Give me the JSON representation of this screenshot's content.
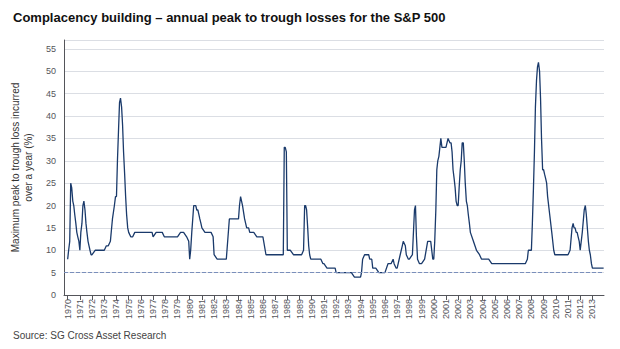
{
  "chart_data": {
    "type": "line",
    "title": "Complacency building – annual peak to trough losses for the S&P 500",
    "source": "Source: SG Cross Asset Research",
    "ylabel": "Maximum peak to trough loss incurred\nover a year (%)",
    "color": "#1a3a6b",
    "grid": "y",
    "xlim": [
      1969.7,
      2013.95
    ],
    "xticks": [
      1970,
      1971,
      1972,
      1973,
      1974,
      1975,
      1976,
      1977,
      1978,
      1979,
      1980,
      1981,
      1982,
      1983,
      1984,
      1985,
      1986,
      1987,
      1988,
      1989,
      1990,
      1991,
      1992,
      1993,
      1994,
      1995,
      1996,
      1997,
      1998,
      1999,
      2000,
      2001,
      2002,
      2003,
      2004,
      2005,
      2006,
      2007,
      2008,
      2009,
      2010,
      2011,
      2012,
      2013
    ],
    "ylim": [
      0,
      57
    ],
    "yticks": [
      0,
      5,
      10,
      15,
      20,
      25,
      30,
      35,
      40,
      45,
      50,
      55
    ],
    "hlines": [
      {
        "value": 5,
        "color": "#7a8fbb",
        "line_style": "dashed"
      }
    ],
    "x": [
      1970.0,
      1970.08,
      1970.17,
      1970.25,
      1970.33,
      1970.42,
      1970.5,
      1970.58,
      1970.67,
      1970.75,
      1970.83,
      1970.92,
      1971.0,
      1971.08,
      1971.17,
      1971.25,
      1971.33,
      1971.42,
      1971.5,
      1971.58,
      1971.67,
      1971.75,
      1971.83,
      1971.92,
      1972.0,
      1972.25,
      1972.5,
      1972.75,
      1972.92,
      1973.0,
      1973.17,
      1973.33,
      1973.5,
      1973.67,
      1973.83,
      1973.92,
      1974.0,
      1974.08,
      1974.17,
      1974.25,
      1974.33,
      1974.42,
      1974.5,
      1974.58,
      1974.67,
      1974.75,
      1974.83,
      1974.92,
      1975.0,
      1975.17,
      1975.33,
      1975.5,
      1975.67,
      1975.83,
      1975.92,
      1976.0,
      1976.25,
      1976.5,
      1976.75,
      1976.92,
      1977.0,
      1977.25,
      1977.5,
      1977.75,
      1977.92,
      1978.0,
      1978.25,
      1978.5,
      1978.75,
      1978.92,
      1979.0,
      1979.25,
      1979.5,
      1979.75,
      1979.92,
      1980.0,
      1980.08,
      1980.17,
      1980.25,
      1980.33,
      1980.42,
      1980.5,
      1980.58,
      1980.67,
      1980.75,
      1980.83,
      1980.92,
      1981.0,
      1981.25,
      1981.5,
      1981.75,
      1981.92,
      1982.0,
      1982.25,
      1982.5,
      1982.75,
      1982.92,
      1983.0,
      1983.25,
      1983.5,
      1983.75,
      1983.92,
      1984.0,
      1984.08,
      1984.17,
      1984.25,
      1984.33,
      1984.5,
      1984.67,
      1984.83,
      1984.92,
      1985.0,
      1985.25,
      1985.5,
      1985.75,
      1985.92,
      1986.0,
      1986.25,
      1986.5,
      1986.75,
      1986.92,
      1987.0,
      1987.08,
      1987.17,
      1987.25,
      1987.67,
      1987.75,
      1987.83,
      1987.92,
      1988.0,
      1988.25,
      1988.5,
      1988.75,
      1988.92,
      1989.0,
      1989.17,
      1989.33,
      1989.42,
      1989.5,
      1989.58,
      1989.67,
      1989.75,
      1989.83,
      1989.92,
      1990.0,
      1990.25,
      1990.5,
      1990.75,
      1990.92,
      1991.0,
      1991.25,
      1991.5,
      1991.75,
      1991.92,
      1992.0,
      1992.25,
      1992.5,
      1992.75,
      1992.92,
      1993.0,
      1993.25,
      1993.5,
      1993.75,
      1993.92,
      1994.0,
      1994.08,
      1994.17,
      1994.33,
      1994.5,
      1994.67,
      1994.75,
      1994.92,
      1995.0,
      1995.25,
      1995.5,
      1995.75,
      1995.92,
      1996.0,
      1996.25,
      1996.5,
      1996.67,
      1996.75,
      1996.92,
      1997.0,
      1997.25,
      1997.42,
      1997.5,
      1997.67,
      1997.75,
      1997.92,
      1998.0,
      1998.25,
      1998.42,
      1998.5,
      1998.58,
      1998.67,
      1998.83,
      1998.92,
      1999.0,
      1999.25,
      1999.5,
      1999.67,
      1999.75,
      1999.92,
      2000.0,
      2000.08,
      2000.17,
      2000.25,
      2000.33,
      2000.42,
      2000.5,
      2000.58,
      2000.67,
      2000.75,
      2000.83,
      2000.92,
      2001.0,
      2001.17,
      2001.33,
      2001.42,
      2001.5,
      2001.58,
      2001.67,
      2001.75,
      2001.83,
      2001.92,
      2002.0,
      2002.08,
      2002.17,
      2002.25,
      2002.33,
      2002.42,
      2002.5,
      2002.58,
      2002.67,
      2002.75,
      2002.83,
      2002.92,
      2003.0,
      2003.25,
      2003.5,
      2003.75,
      2003.92,
      2004.0,
      2004.25,
      2004.5,
      2004.75,
      2004.92,
      2005.0,
      2005.25,
      2005.5,
      2005.75,
      2005.92,
      2006.0,
      2006.25,
      2006.5,
      2006.75,
      2006.92,
      2007.0,
      2007.25,
      2007.5,
      2007.67,
      2007.75,
      2007.92,
      2008.0,
      2008.08,
      2008.17,
      2008.25,
      2008.33,
      2008.42,
      2008.5,
      2008.58,
      2008.67,
      2008.75,
      2008.83,
      2008.92,
      2009.0,
      2009.08,
      2009.17,
      2009.25,
      2009.33,
      2009.5,
      2009.67,
      2009.83,
      2009.92,
      2010.0,
      2010.25,
      2010.5,
      2010.67,
      2010.92,
      2011.0,
      2011.17,
      2011.33,
      2011.42,
      2011.5,
      2011.58,
      2011.67,
      2011.75,
      2011.83,
      2011.92,
      2012.0,
      2012.17,
      2012.33,
      2012.42,
      2012.5,
      2012.67,
      2012.75,
      2012.83,
      2012.92,
      2013.0,
      2013.25,
      2013.5,
      2013.75,
      2013.92
    ],
    "values": [
      8,
      10,
      12,
      25,
      24,
      21,
      20,
      18,
      16,
      14,
      13,
      12,
      10,
      14,
      16,
      20,
      21,
      19,
      16,
      14,
      12,
      11,
      10,
      9,
      9,
      10,
      10,
      10,
      10,
      10,
      11,
      11,
      12,
      17,
      20,
      22,
      22,
      30,
      37,
      43,
      44,
      42,
      38,
      32,
      27,
      22,
      18,
      15,
      14,
      13,
      13,
      14,
      14,
      14,
      14,
      14,
      14,
      14,
      14,
      14,
      13,
      14,
      14,
      14,
      13,
      13,
      13,
      13,
      13,
      13,
      13,
      14,
      14,
      13,
      12,
      8,
      10,
      14,
      17,
      20,
      20,
      20,
      19,
      19,
      18,
      17,
      16,
      15,
      14,
      14,
      14,
      13,
      9,
      8,
      8,
      8,
      8,
      8,
      17,
      17,
      17,
      17,
      17,
      20,
      22,
      21,
      20,
      17,
      15,
      15,
      14,
      14,
      14,
      13,
      13,
      13,
      13,
      9,
      9,
      9,
      9,
      9,
      9,
      9,
      9,
      9,
      33,
      33,
      32,
      10,
      10,
      9,
      9,
      9,
      9,
      9,
      10,
      20,
      20,
      19,
      15,
      11,
      9,
      8,
      8,
      8,
      8,
      8,
      7,
      7,
      6,
      6,
      6,
      6,
      5,
      5,
      5,
      5,
      5,
      5,
      5,
      4,
      4,
      4,
      4,
      5,
      8,
      9,
      9,
      9,
      8,
      8,
      6,
      6,
      5,
      5,
      5,
      5,
      7,
      7,
      8,
      7,
      6,
      6,
      9,
      11,
      12,
      11,
      9,
      8,
      8,
      9,
      19,
      20,
      13,
      8,
      7,
      7,
      7,
      8,
      12,
      12,
      12,
      8,
      8,
      12,
      19,
      28,
      30,
      31,
      33,
      35,
      33,
      33,
      33,
      33,
      33,
      35,
      34,
      34,
      32,
      28,
      26,
      24,
      21,
      20,
      20,
      24,
      28,
      30,
      34,
      34,
      30,
      25,
      21,
      20,
      18,
      16,
      14,
      12,
      10,
      9,
      8,
      8,
      8,
      8,
      7,
      7,
      7,
      7,
      7,
      7,
      7,
      7,
      7,
      7,
      7,
      7,
      7,
      7,
      7,
      8,
      10,
      10,
      10,
      16,
      24,
      32,
      42,
      48,
      51,
      52,
      50,
      44,
      35,
      28,
      28,
      27,
      26,
      25,
      22,
      18,
      14,
      10,
      9,
      9,
      9,
      9,
      9,
      9,
      9,
      10,
      15,
      16,
      15,
      15,
      14,
      14,
      13,
      12,
      10,
      14,
      19,
      20,
      18,
      12,
      10,
      9,
      7,
      6,
      6,
      6,
      6,
      6
    ]
  }
}
